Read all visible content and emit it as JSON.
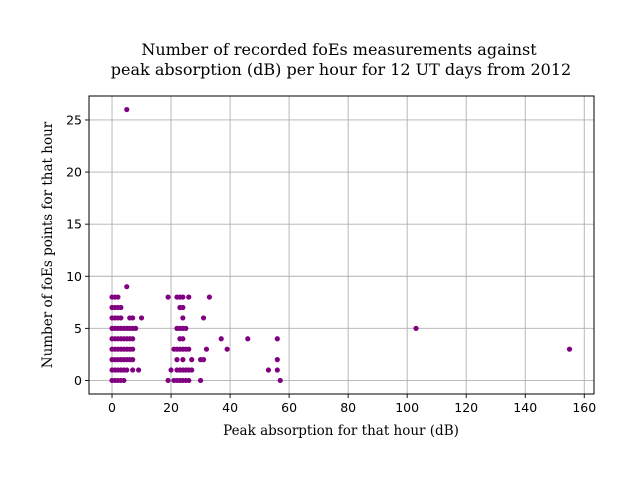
{
  "chart_data": {
    "type": "scatter",
    "title_lines": [
      "Number of recorded foEs measurements against",
      "peak absorption (dB) per hour for 12 UT days from 2012"
    ],
    "xlabel": "Peak absorption for that hour (dB)",
    "ylabel": "Number of foEs points for that hour",
    "xlim": [
      -7.8,
      163.3
    ],
    "ylim": [
      -1.3,
      27.3
    ],
    "xticks": [
      0,
      20,
      40,
      60,
      80,
      100,
      120,
      140,
      160
    ],
    "yticks": [
      0,
      5,
      10,
      15,
      20,
      25
    ],
    "grid": true,
    "marker_color": "#800080",
    "series": [
      {
        "points": [
          [
            0,
            0
          ],
          [
            1,
            0
          ],
          [
            2,
            0
          ],
          [
            3,
            0
          ],
          [
            4,
            0
          ],
          [
            0,
            1
          ],
          [
            1,
            1
          ],
          [
            2,
            1
          ],
          [
            3,
            1
          ],
          [
            4,
            1
          ],
          [
            5,
            1
          ],
          [
            7,
            1
          ],
          [
            9,
            1
          ],
          [
            0,
            2
          ],
          [
            1,
            2
          ],
          [
            2,
            2
          ],
          [
            3,
            2
          ],
          [
            4,
            2
          ],
          [
            5,
            2
          ],
          [
            6,
            2
          ],
          [
            7,
            2
          ],
          [
            0,
            3
          ],
          [
            1,
            3
          ],
          [
            2,
            3
          ],
          [
            3,
            3
          ],
          [
            4,
            3
          ],
          [
            5,
            3
          ],
          [
            6,
            3
          ],
          [
            7,
            3
          ],
          [
            0,
            4
          ],
          [
            1,
            4
          ],
          [
            2,
            4
          ],
          [
            3,
            4
          ],
          [
            4,
            4
          ],
          [
            5,
            4
          ],
          [
            6,
            4
          ],
          [
            7,
            4
          ],
          [
            0,
            5
          ],
          [
            1,
            5
          ],
          [
            2,
            5
          ],
          [
            3,
            5
          ],
          [
            4,
            5
          ],
          [
            5,
            5
          ],
          [
            6,
            5
          ],
          [
            7,
            5
          ],
          [
            8,
            5
          ],
          [
            0,
            6
          ],
          [
            1,
            6
          ],
          [
            2,
            6
          ],
          [
            3,
            6
          ],
          [
            6,
            6
          ],
          [
            7,
            6
          ],
          [
            10,
            6
          ],
          [
            0,
            7
          ],
          [
            1,
            7
          ],
          [
            2,
            7
          ],
          [
            3,
            7
          ],
          [
            0,
            8
          ],
          [
            1,
            8
          ],
          [
            2,
            8
          ],
          [
            5,
            9
          ],
          [
            5,
            26
          ],
          [
            19,
            0
          ],
          [
            21,
            0
          ],
          [
            22,
            0
          ],
          [
            23,
            0
          ],
          [
            24,
            0
          ],
          [
            25,
            0
          ],
          [
            26,
            0
          ],
          [
            30,
            0
          ],
          [
            20,
            1
          ],
          [
            22,
            1
          ],
          [
            23,
            1
          ],
          [
            24,
            1
          ],
          [
            25,
            1
          ],
          [
            26,
            1
          ],
          [
            27,
            1
          ],
          [
            22,
            2
          ],
          [
            24,
            2
          ],
          [
            27,
            2
          ],
          [
            30,
            2
          ],
          [
            31,
            2
          ],
          [
            21,
            3
          ],
          [
            22,
            3
          ],
          [
            23,
            3
          ],
          [
            24,
            3
          ],
          [
            25,
            3
          ],
          [
            26,
            3
          ],
          [
            32,
            3
          ],
          [
            23,
            4
          ],
          [
            24,
            4
          ],
          [
            22,
            5
          ],
          [
            23,
            5
          ],
          [
            24,
            5
          ],
          [
            25,
            5
          ],
          [
            24,
            6
          ],
          [
            31,
            6
          ],
          [
            23,
            7
          ],
          [
            24,
            7
          ],
          [
            19,
            8
          ],
          [
            22,
            8
          ],
          [
            23,
            8
          ],
          [
            24,
            8
          ],
          [
            26,
            8
          ],
          [
            33,
            8
          ],
          [
            37,
            4
          ],
          [
            39,
            3
          ],
          [
            46,
            4
          ],
          [
            53,
            1
          ],
          [
            56,
            1
          ],
          [
            56,
            2
          ],
          [
            56,
            4
          ],
          [
            57,
            0
          ],
          [
            103,
            5
          ],
          [
            155,
            3
          ]
        ]
      }
    ]
  }
}
